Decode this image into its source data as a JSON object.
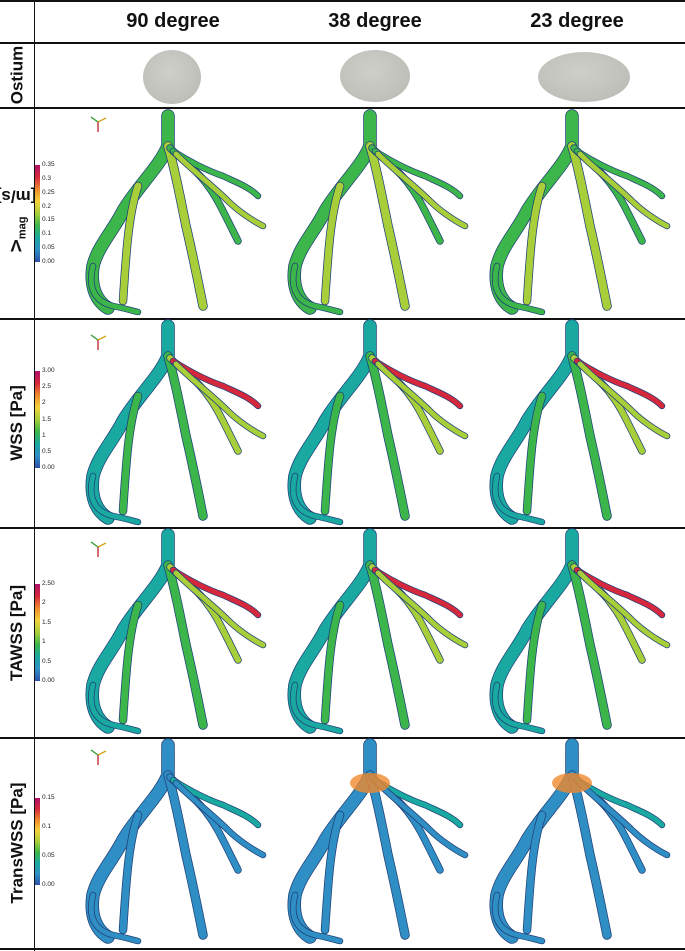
{
  "columns": [
    "90 degree",
    "38 degree",
    "23 degree"
  ],
  "rows": [
    {
      "label_main": "Ostium",
      "label_sub": ""
    },
    {
      "label_main": "V",
      "label_sub": "mag",
      "label_tail": " [m/s]",
      "ticks": [
        "0.35",
        "0.3",
        "0.25",
        "0.2",
        "0.15",
        "0.1",
        "0.05",
        "0.00"
      ]
    },
    {
      "label_main": "WSS [Pa]",
      "label_sub": "",
      "ticks": [
        "3.00",
        "2.5",
        "2",
        "1.5",
        "1",
        "0.5",
        "0.00"
      ]
    },
    {
      "label_main": "TAWSS [Pa]",
      "label_sub": "",
      "ticks": [
        "2.50",
        "2",
        "1.5",
        "1",
        "0.5",
        "0.00"
      ]
    },
    {
      "label_main": "TransWSS [Pa]",
      "label_sub": "",
      "ticks": [
        "0.15",
        "0.1",
        "0.05",
        "0.00"
      ]
    }
  ],
  "colors": {
    "colormap": [
      "#2f4fa8",
      "#2f8fc4",
      "#1aa9a0",
      "#3cb54a",
      "#a8cf3a",
      "#f2d23a",
      "#f08a2e",
      "#d6283c",
      "#b0106a"
    ],
    "vessel_base": "#2a5fa8"
  }
}
